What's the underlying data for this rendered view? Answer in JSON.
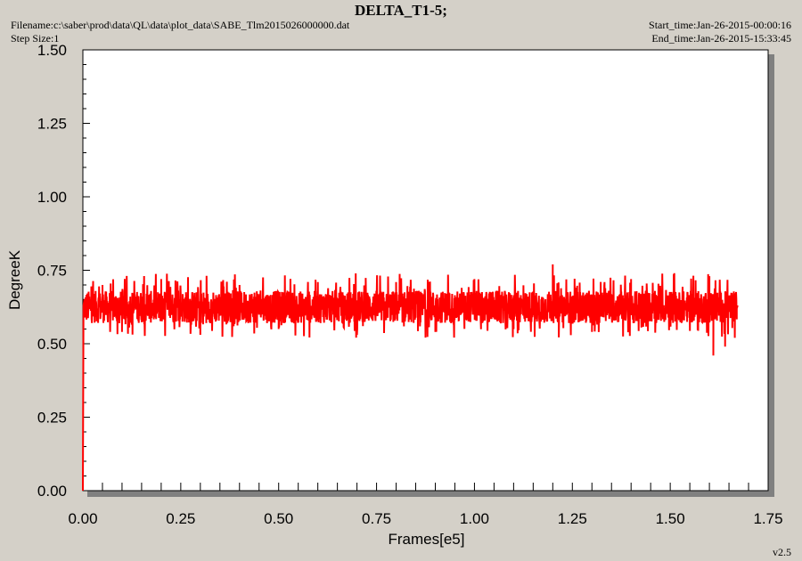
{
  "header": {
    "title": "DELTA_T1-5;",
    "filename": "Filename:c:\\saber\\prod\\data\\QL\\data\\plot_data\\SABE_Tlm2015026000000.dat",
    "step_size": "Step Size:1",
    "start_time": "Start_time:Jan-26-2015-00:00:16",
    "end_time": "End_time:Jan-26-2015-15:33:45",
    "version": "v2.5"
  },
  "colors": {
    "window_bg": "#d4d0c8",
    "plot_bg": "#ffffff",
    "series": "#ff0000"
  },
  "chart_data": {
    "type": "line",
    "title": "DELTA_T1-5;",
    "xlabel": "Frames[e5]",
    "ylabel": "DegreeK",
    "xlim": [
      0,
      1.75
    ],
    "ylim": [
      0,
      1.5
    ],
    "xticks": [
      "0.00",
      "0.25",
      "0.50",
      "0.75",
      "1.00",
      "1.25",
      "1.50",
      "1.75"
    ],
    "yticks": [
      "0.00",
      "0.25",
      "0.50",
      "0.75",
      "1.00",
      "1.25",
      "1.50"
    ],
    "grid": false,
    "series": [
      {
        "color": "#ff0000",
        "x_range": [
          0,
          1.67
        ],
        "baseline": 0.63,
        "band": [
          0.57,
          0.68
        ],
        "spike_range": [
          0.51,
          0.77
        ],
        "points": [
          [
            0.0,
            0.0
          ],
          [
            0.002,
            0.62
          ],
          [
            0.05,
            0.7
          ],
          [
            0.1,
            0.54
          ],
          [
            0.2,
            0.72
          ],
          [
            0.3,
            0.55
          ],
          [
            0.4,
            0.7
          ],
          [
            0.5,
            0.55
          ],
          [
            0.6,
            0.71
          ],
          [
            0.7,
            0.53
          ],
          [
            0.8,
            0.71
          ],
          [
            0.9,
            0.54
          ],
          [
            1.0,
            0.72
          ],
          [
            1.1,
            0.55
          ],
          [
            1.2,
            0.77
          ],
          [
            1.3,
            0.54
          ],
          [
            1.4,
            0.72
          ],
          [
            1.5,
            0.56
          ],
          [
            1.6,
            0.73
          ],
          [
            1.61,
            0.46
          ],
          [
            1.64,
            0.49
          ],
          [
            1.67,
            0.62
          ]
        ]
      }
    ]
  }
}
